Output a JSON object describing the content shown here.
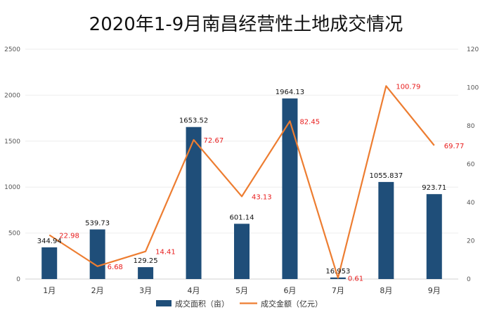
{
  "chart_data": {
    "type": "bar",
    "title": "2020年1-9月南昌经营性土地成交情况",
    "categories": [
      "1月",
      "2月",
      "3月",
      "4月",
      "5月",
      "6月",
      "7月",
      "8月",
      "9月"
    ],
    "series": [
      {
        "name": "成交面积（亩）",
        "type": "bar",
        "axis": "left",
        "values": [
          344.94,
          539.73,
          129.25,
          1653.52,
          601.14,
          1964.13,
          16.953,
          1055.837,
          923.71
        ],
        "labels": [
          "344.94",
          "539.73",
          "129.25",
          "1653.52",
          "601.14",
          "1964.13",
          "16.953",
          "1055.837",
          "923.71"
        ]
      },
      {
        "name": "成交金额（亿元）",
        "type": "line",
        "axis": "right",
        "values": [
          22.98,
          6.68,
          14.41,
          72.67,
          43.13,
          82.45,
          0.61,
          100.79,
          69.77
        ],
        "labels": [
          "22.98",
          "6.68",
          "14.41",
          "72.67",
          "43.13",
          "82.45",
          "0.61",
          "100.79",
          "69.77"
        ]
      }
    ],
    "y_left": {
      "lim": [
        0,
        2500
      ],
      "ticks": [
        "0",
        "500",
        "1000",
        "1500",
        "2000",
        "2500"
      ]
    },
    "y_right": {
      "lim": [
        0,
        120
      ],
      "ticks": [
        "0",
        "20",
        "40",
        "60",
        "80",
        "100",
        "120"
      ]
    },
    "grid": true,
    "legend": "bottom",
    "colors": {
      "bar": "#1f4e79",
      "line": "#ed7d31",
      "line_label": "#e81c1c"
    }
  }
}
